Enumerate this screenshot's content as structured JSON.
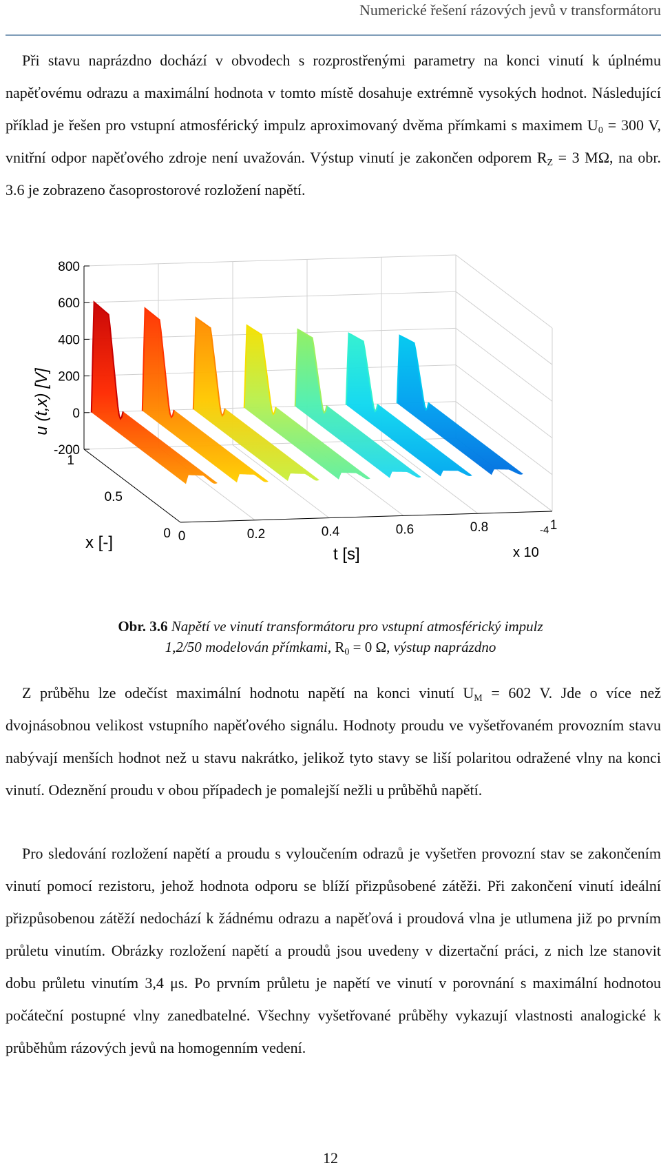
{
  "header": {
    "title": "Numerické řešení rázových jevů v transformátoru"
  },
  "para1": {
    "a": "Při stavu naprázdno dochází v obvodech s rozprostřenými parametry na konci vinutí k úplnému napěťovému odrazu a maximální hodnota v tomto místě dosahuje extrémně vysokých hodnot. Následující příklad je řešen pro vstupní atmosférický impulz aproximovaný dvěma přímkami s maximem U",
    "a_sub": "0",
    "b": " = 300 V, vnitřní odpor napěťového zdroje není uvažován. Výstup vinutí je zakončen odporem R",
    "b_sub": "Z",
    "c": " = 3 MΩ, na obr. 3.6 je zobrazeno časoprostorové rozložení napětí."
  },
  "figure": {
    "caption_label": "Obr. 3.6",
    "caption_l1": " Napětí ve vinutí transformátoru pro vstupní atmosférický impulz",
    "caption_l2a": "1,2/50 modelován přímkami, ",
    "caption_l2b": "R",
    "caption_l2b_sub": "0",
    "caption_l2c": " = 0 Ω, ",
    "caption_l2d": "výstup naprázdno"
  },
  "chart_data": {
    "type": "surface",
    "zlabel": "u (t,x) [V]",
    "xlabel": "x [-]",
    "tlabel": "t [s]",
    "t_multiplier": "x 10",
    "t_multiplier_exp": "-4",
    "z_ticks": [
      "800",
      "600",
      "400",
      "200",
      "0",
      "-200"
    ],
    "x_ticks": [
      "1",
      "0.5",
      "0"
    ],
    "t_ticks": [
      "0",
      "0.2",
      "0.4",
      "0.6",
      "0.8",
      "1"
    ],
    "zlim": [
      -200,
      800
    ],
    "xlim": [
      0,
      1
    ],
    "tlim": [
      0,
      1
    ],
    "wave_peaks": [
      602,
      560,
      500,
      450,
      420,
      390,
      370
    ],
    "colors": [
      "#c80000",
      "#ff3300",
      "#ff8800",
      "#f5e000",
      "#9cf060",
      "#30f0d0",
      "#00c8f0"
    ]
  },
  "para2": {
    "a": "Z průběhu lze odečíst maximální hodnotu napětí na konci vinutí U",
    "a_sub": "M",
    "b": " = 602 V. Jde o více než dvojnásobnou velikost vstupního napěťového signálu. Hodnoty proudu ve vyšetřovaném provozním stavu nabývají menších hodnot než u stavu nakrátko, jelikož tyto stavy se liší polaritou odražené vlny na konci vinutí. Odeznění proudu v obou případech je pomalejší nežli u průběhů napětí."
  },
  "para3": {
    "text": "Pro sledování rozložení napětí a proudu s vyloučením odrazů je vyšetřen provozní stav se zakončením vinutí pomocí rezistoru, jehož hodnota odporu se blíží přizpůsobené zátěži. Při zakončení vinutí ideální přizpůsobenou zátěží nedochází k žádnému odrazu a napěťová i proudová vlna je utlumena již po prvním průletu vinutím. Obrázky rozložení napětí a proudů jsou uvedeny v dizertační práci, z nich lze stanovit dobu průletu vinutím 3,4 μs. Po prvním průletu je napětí ve vinutí v porovnání s maximální hodnotou počáteční postupné vlny zanedbatelné. Všechny vyšetřované průběhy vykazují vlastnosti analogické k průběhům rázových jevů na homogenním vedení."
  },
  "page": {
    "number": "12"
  }
}
